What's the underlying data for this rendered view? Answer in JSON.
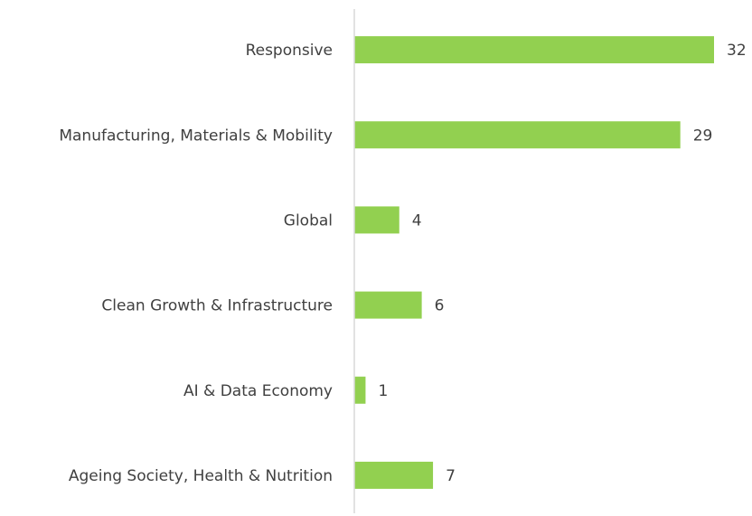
{
  "chart_data": {
    "type": "barh",
    "categories": [
      "Responsive",
      "Manufacturing, Materials & Mobility",
      "Global",
      "Clean Growth & Infrastructure",
      "AI & Data Economy",
      "Ageing Society, Health & Nutrition"
    ],
    "values": [
      32,
      29,
      4,
      6,
      1,
      7
    ],
    "color": "#92d050",
    "xlim": [
      0,
      32
    ]
  }
}
